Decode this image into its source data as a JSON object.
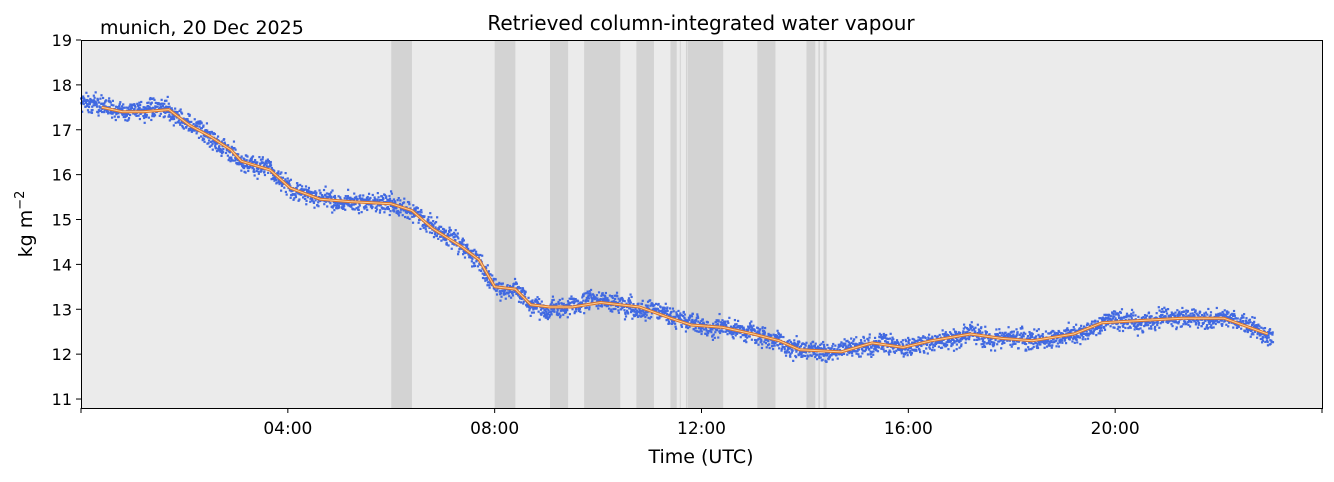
{
  "chart_data": {
    "type": "scatter",
    "title": "Retrieved column-integrated water vapour",
    "subtitle": "munich, 20 Dec 2025",
    "xlabel": "Time (UTC)",
    "ylabel": "kg m",
    "ylabel_sup": "−2",
    "xlim": [
      0,
      24
    ],
    "ylim": [
      10.8,
      19
    ],
    "xticks": [
      {
        "value": 0,
        "label": ""
      },
      {
        "value": 4,
        "label": "04:00"
      },
      {
        "value": 8,
        "label": "08:00"
      },
      {
        "value": 12,
        "label": "12:00"
      },
      {
        "value": 16,
        "label": "16:00"
      },
      {
        "value": 20,
        "label": "20:00"
      },
      {
        "value": 24,
        "label": ""
      }
    ],
    "yticks": [
      {
        "value": 11,
        "label": "11"
      },
      {
        "value": 12,
        "label": "12"
      },
      {
        "value": 13,
        "label": "13"
      },
      {
        "value": 14,
        "label": "14"
      },
      {
        "value": 15,
        "label": "15"
      },
      {
        "value": 16,
        "label": "16"
      },
      {
        "value": 17,
        "label": "17"
      },
      {
        "value": 18,
        "label": "18"
      },
      {
        "value": 19,
        "label": "19"
      }
    ],
    "shaded_periods_hours": [
      [
        6.0,
        6.4
      ],
      [
        8.0,
        8.4
      ],
      [
        9.07,
        9.42
      ],
      [
        9.73,
        10.43
      ],
      [
        10.74,
        11.08
      ],
      [
        11.4,
        11.52
      ],
      [
        11.58,
        11.6
      ],
      [
        11.7,
        11.72
      ],
      [
        11.73,
        12.42
      ],
      [
        13.08,
        13.43
      ],
      [
        14.03,
        14.2
      ],
      [
        14.26,
        14.29
      ],
      [
        14.36,
        14.42
      ]
    ],
    "raw_series": {
      "name": "retrieval",
      "color": "#4169e1",
      "x_range": [
        0,
        23.05
      ],
      "noise_amplitude": 0.25,
      "start_value": 17.65
    },
    "smoothed_series": {
      "name": "smoothed",
      "color": "#ff8c1a",
      "x": [
        0.4,
        0.8,
        1.2,
        1.7,
        2.1,
        2.5,
        2.9,
        3.1,
        3.66,
        4.05,
        4.63,
        5.2,
        6.0,
        6.4,
        6.8,
        7.35,
        7.7,
        8.0,
        8.4,
        8.7,
        9.07,
        9.5,
        10.05,
        10.8,
        11.4,
        11.8,
        12.4,
        13.0,
        13.5,
        13.9,
        14.7,
        15.3,
        15.9,
        16.45,
        17.2,
        17.8,
        18.4,
        19.2,
        19.75,
        20.5,
        21.3,
        22.1,
        22.95
      ],
      "y": [
        17.5,
        17.4,
        17.4,
        17.45,
        17.1,
        16.85,
        16.55,
        16.3,
        16.1,
        15.7,
        15.45,
        15.4,
        15.35,
        15.2,
        14.8,
        14.4,
        14.1,
        13.5,
        13.45,
        13.1,
        13.05,
        13.05,
        13.15,
        13.05,
        12.8,
        12.65,
        12.6,
        12.45,
        12.3,
        12.1,
        12.05,
        12.25,
        12.15,
        12.3,
        12.45,
        12.35,
        12.3,
        12.45,
        12.7,
        12.75,
        12.8,
        12.8,
        12.45
      ]
    },
    "colors": {
      "axes_bg": "#ebebeb",
      "shade": "#d3d3d3"
    }
  }
}
